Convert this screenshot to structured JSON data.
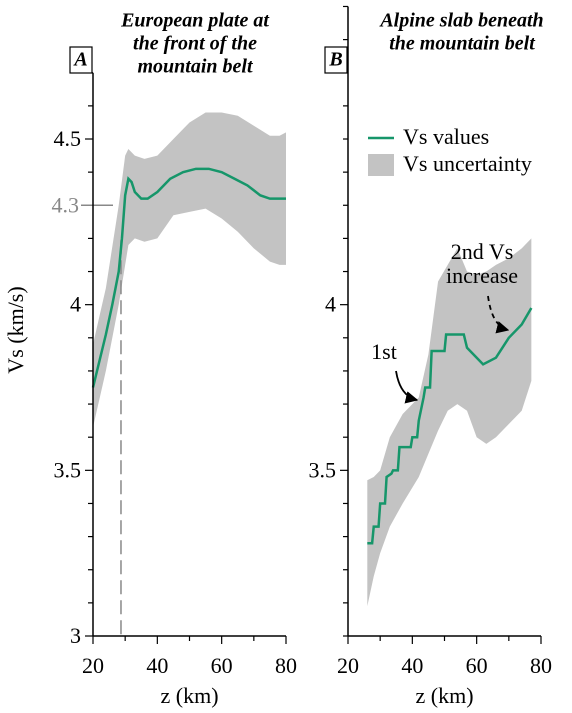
{
  "chart_data": [
    {
      "type": "line",
      "panel": "A",
      "title": [
        "European plate at",
        "the front of the",
        "mountain belt"
      ],
      "x_label": "z (km)",
      "y_label": "Vs (km/s)",
      "xlim": [
        20,
        80
      ],
      "ylim": [
        3,
        4.7
      ],
      "xticks": [
        20,
        40,
        60,
        80
      ],
      "xticks_minor": [
        30,
        50,
        70
      ],
      "yticks": [
        3,
        3.5,
        4,
        4.5
      ],
      "yticks_minor": [
        3.1,
        3.2,
        3.3,
        3.4,
        3.6,
        3.7,
        3.8,
        3.9,
        4.1,
        4.2,
        4.4,
        4.6,
        4.7
      ],
      "reference_tick": {
        "value": 4.3,
        "label": "4.3"
      },
      "reference_z": 28.7,
      "reference_color": "#888888",
      "legend": false,
      "series": [
        {
          "color": "#16966a",
          "x": [
            20,
            22,
            24,
            26,
            27,
            28,
            29,
            30,
            31,
            32,
            33,
            35,
            37,
            40,
            44,
            48,
            52,
            56,
            60,
            64,
            68,
            72,
            75,
            78,
            80
          ],
          "values": [
            3.75,
            3.83,
            3.91,
            4.0,
            4.05,
            4.1,
            4.2,
            4.33,
            4.38,
            4.37,
            4.34,
            4.32,
            4.32,
            4.34,
            4.38,
            4.4,
            4.41,
            4.41,
            4.4,
            4.38,
            4.36,
            4.33,
            4.32,
            4.32,
            4.32
          ]
        }
      ],
      "band": {
        "color": "#c3c3c3",
        "x": [
          20,
          24,
          28,
          30,
          31,
          33,
          36,
          40,
          45,
          50,
          55,
          60,
          65,
          70,
          75,
          78,
          80
        ],
        "upper": [
          3.88,
          4.05,
          4.3,
          4.45,
          4.47,
          4.45,
          4.44,
          4.45,
          4.5,
          4.55,
          4.58,
          4.58,
          4.57,
          4.54,
          4.51,
          4.51,
          4.52
        ],
        "lower": [
          3.63,
          3.8,
          4.0,
          4.12,
          4.18,
          4.2,
          4.19,
          4.2,
          4.27,
          4.28,
          4.29,
          4.26,
          4.22,
          4.17,
          4.13,
          4.12,
          4.12
        ]
      }
    },
    {
      "type": "line",
      "panel": "B",
      "title": [
        "Alpine slab beneath",
        "the mountain belt"
      ],
      "x_label": "z (km)",
      "xlim": [
        20,
        80
      ],
      "ylim": [
        3,
        4.9
      ],
      "xticks": [
        20,
        40,
        60,
        80
      ],
      "xticks_minor": [
        30,
        50,
        70
      ],
      "yticks": [
        3.5,
        4
      ],
      "yticks_minor": [
        3,
        3.1,
        3.2,
        3.3,
        3.4,
        3.6,
        3.7,
        3.8,
        3.9,
        4.1,
        4.2,
        4.3,
        4.4,
        4.5,
        4.6,
        4.7,
        4.8,
        4.9
      ],
      "legend": true,
      "annotations": [
        {
          "text": [
            "1st"
          ]
        },
        {
          "text": [
            "2nd Vs",
            "increase"
          ]
        }
      ],
      "series": [
        {
          "name": "Vs values",
          "color": "#16966a",
          "x": [
            26,
            27.5,
            28,
            29.5,
            30,
            31.5,
            32,
            33.5,
            34,
            35.5,
            36,
            37.5,
            38,
            39.5,
            40,
            41.5,
            42,
            43.5,
            44,
            45.5,
            46,
            47.5,
            48,
            50,
            50.5,
            53,
            53.5,
            56,
            57,
            62,
            66,
            70,
            74,
            77
          ],
          "values": [
            3.28,
            3.28,
            3.33,
            3.33,
            3.4,
            3.4,
            3.48,
            3.49,
            3.5,
            3.5,
            3.57,
            3.57,
            3.57,
            3.57,
            3.6,
            3.6,
            3.65,
            3.72,
            3.75,
            3.75,
            3.86,
            3.86,
            3.86,
            3.86,
            3.91,
            3.91,
            3.91,
            3.91,
            3.87,
            3.82,
            3.84,
            3.9,
            3.94,
            3.99
          ]
        }
      ],
      "band": {
        "name": "Vs uncertainty",
        "color": "#c3c3c3",
        "x": [
          26,
          28,
          30,
          33,
          37,
          42,
          45,
          48,
          51,
          54,
          57,
          60,
          63,
          66,
          70,
          74,
          77
        ],
        "upper": [
          3.47,
          3.48,
          3.5,
          3.6,
          3.67,
          3.72,
          3.85,
          4.07,
          4.12,
          4.17,
          4.1,
          4.09,
          4.1,
          4.12,
          4.14,
          4.17,
          4.2
        ],
        "lower": [
          3.09,
          3.18,
          3.25,
          3.33,
          3.4,
          3.48,
          3.55,
          3.62,
          3.68,
          3.7,
          3.68,
          3.6,
          3.58,
          3.6,
          3.64,
          3.68,
          3.77
        ]
      }
    }
  ]
}
